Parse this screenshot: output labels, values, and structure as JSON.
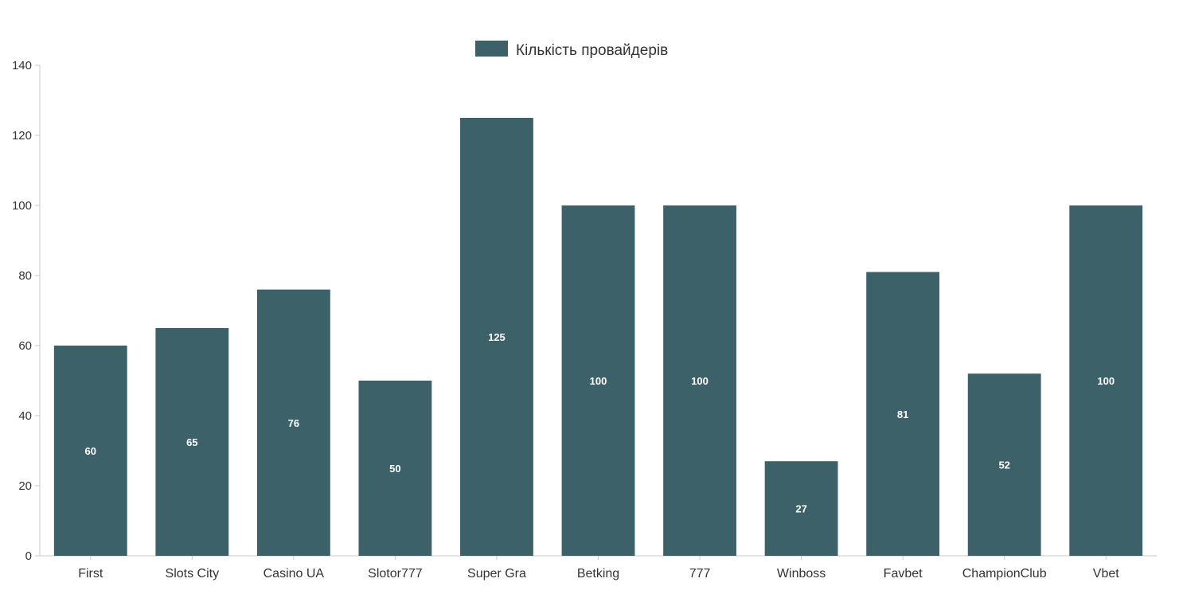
{
  "chart_data": {
    "type": "bar",
    "categories": [
      "First",
      "Slots City",
      "Casino UA",
      "Slotor777",
      "Super Gra",
      "Betking",
      "777",
      "Winboss",
      "Favbet",
      "ChampionClub",
      "Vbet"
    ],
    "series": [
      {
        "name": "Кількість провайдерів",
        "values": [
          60,
          65,
          76,
          50,
          125,
          100,
          100,
          27,
          81,
          52,
          100
        ],
        "color": "#3d6169"
      }
    ],
    "yticks": [
      0,
      20,
      40,
      60,
      80,
      100,
      120,
      140
    ],
    "ylim": [
      0,
      140
    ],
    "grid": false,
    "legend": "top-center",
    "data_labels": "inside-center"
  }
}
